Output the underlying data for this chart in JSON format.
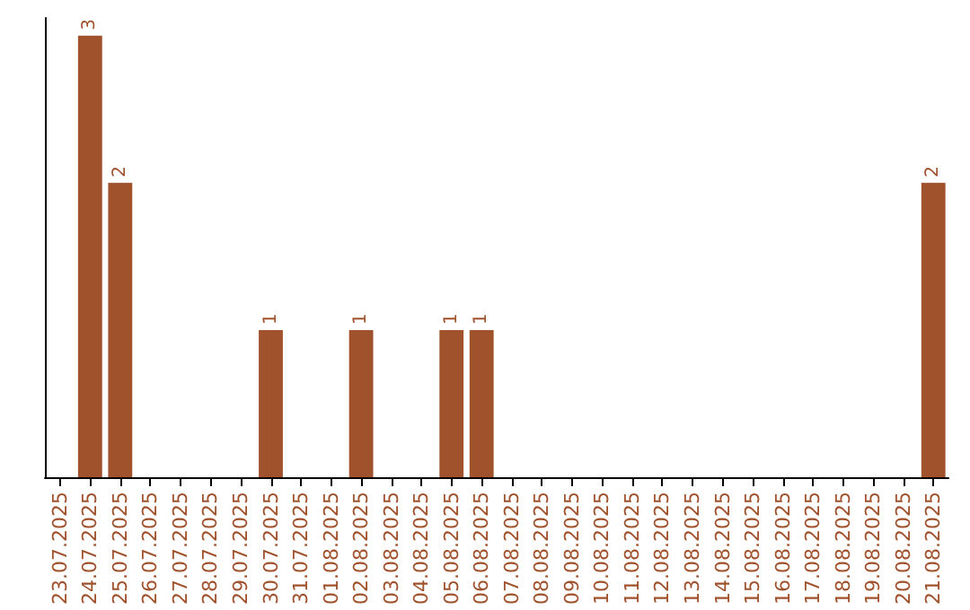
{
  "chart_data": {
    "type": "bar",
    "categories": [
      "23.07.2025",
      "24.07.2025",
      "25.07.2025",
      "26.07.2025",
      "27.07.2025",
      "28.07.2025",
      "29.07.2025",
      "30.07.2025",
      "31.07.2025",
      "01.08.2025",
      "02.08.2025",
      "03.08.2025",
      "04.08.2025",
      "05.08.2025",
      "06.08.2025",
      "07.08.2025",
      "08.08.2025",
      "09.08.2025",
      "10.08.2025",
      "11.08.2025",
      "12.08.2025",
      "13.08.2025",
      "14.08.2025",
      "15.08.2025",
      "16.08.2025",
      "17.08.2025",
      "18.08.2025",
      "19.08.2025",
      "20.08.2025",
      "21.08.2025"
    ],
    "values": [
      0,
      3,
      2,
      0,
      0,
      0,
      0,
      1,
      0,
      0,
      1,
      0,
      0,
      1,
      1,
      0,
      0,
      0,
      0,
      0,
      0,
      0,
      0,
      0,
      0,
      0,
      0,
      0,
      0,
      2
    ],
    "value_labels": [
      null,
      "3",
      "2",
      null,
      null,
      null,
      null,
      "1",
      null,
      null,
      "1",
      null,
      null,
      "1",
      "1",
      null,
      null,
      null,
      null,
      null,
      null,
      null,
      null,
      null,
      null,
      null,
      null,
      null,
      null,
      "2"
    ],
    "color": "#a0522d",
    "tick_labels": "x"
  }
}
